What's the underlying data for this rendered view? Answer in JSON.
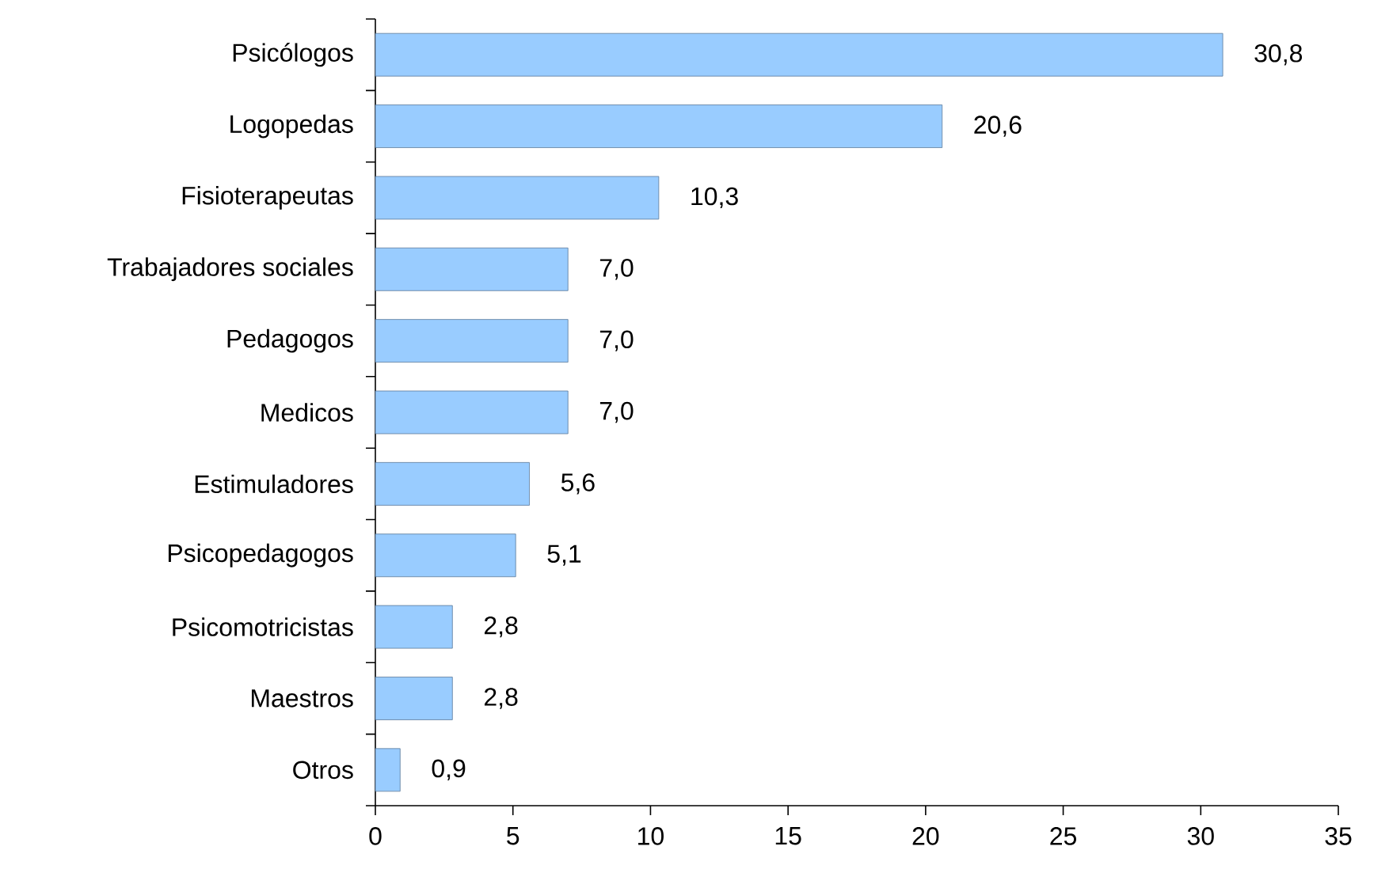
{
  "chart_data": {
    "type": "bar",
    "orientation": "horizontal",
    "categories": [
      "Psicólogos",
      "Logopedas",
      "Fisioterapeutas",
      "Trabajadores sociales",
      "Pedagogos",
      "Medicos",
      "Estimuladores",
      "Psicopedagogos",
      "Psicomotricistas",
      "Maestros",
      "Otros"
    ],
    "values": [
      30.8,
      20.6,
      10.3,
      7.0,
      7.0,
      7.0,
      5.6,
      5.1,
      2.8,
      2.8,
      0.9
    ],
    "value_labels": [
      "30,8",
      "20,6",
      "10,3",
      "7,0",
      "7,0",
      "7,0",
      "5,6",
      "5,1",
      "2,8",
      "2,8",
      "0,9"
    ],
    "color": "#99ccff",
    "xlim": [
      0,
      35
    ],
    "xticks": [
      0,
      5,
      10,
      15,
      20,
      25,
      30,
      35
    ]
  }
}
